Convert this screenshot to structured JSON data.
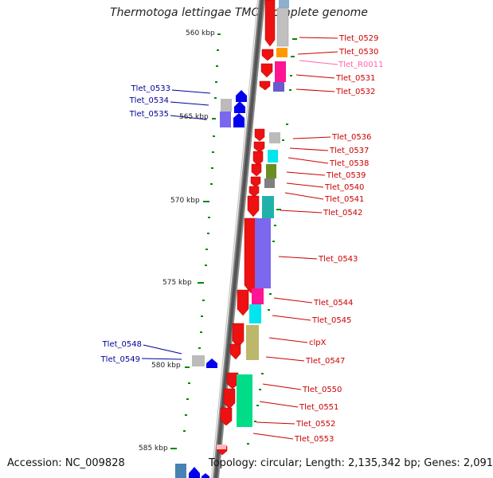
{
  "title": "Thermotoga lettingae TMO, complete genome",
  "footer": {
    "accession": "Accession: NC_009828",
    "summary": "Topology: circular; Length: 2,135,342 bp; Genes: 2,091"
  },
  "scale_labels": [
    "560 kbp",
    "565 kbp",
    "570 kbp",
    "575 kbp",
    "580 kbp",
    "585 kbp"
  ],
  "right_genes": [
    "Tlet_0529",
    "Tlet_0530",
    "Tlet_R0011",
    "Tlet_0531",
    "Tlet_0532",
    "Tlet_0536",
    "Tlet_0537",
    "Tlet_0538",
    "Tlet_0539",
    "Tlet_0540",
    "Tlet_0541",
    "Tlet_0542",
    "Tlet_0543",
    "Tlet_0544",
    "Tlet_0545",
    "clpX",
    "Tlet_0547",
    "Tlet_0550",
    "Tlet_0551",
    "Tlet_0552",
    "Tlet_0553"
  ],
  "left_genes": [
    "Tlet_0533",
    "Tlet_0534",
    "Tlet_0535",
    "Tlet_0548",
    "Tlet_0549"
  ],
  "colors": {
    "forward_arrow": "#ee1111",
    "reverse_arrow": "#0000ee",
    "backbone": "#666666",
    "tick": "#006600",
    "rna_label": "#ff66aa"
  }
}
